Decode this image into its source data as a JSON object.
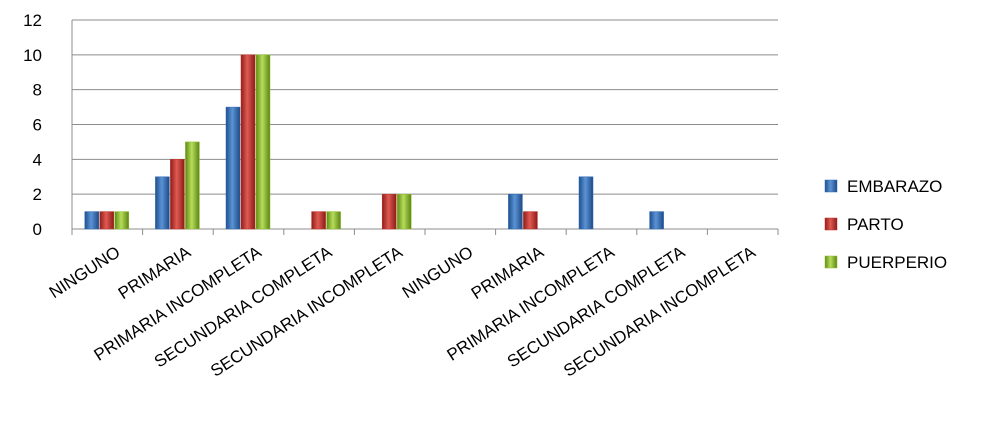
{
  "chart_data": {
    "type": "bar",
    "categories": [
      "NINGUNO",
      "PRIMARIA",
      "PRIMARIA INCOMPLETA",
      "SECUNDARIA COMPLETA",
      "SECUNDARIA INCOMPLETA",
      "NINGUNO",
      "PRIMARIA",
      "PRIMARIA INCOMPLETA",
      "SECUNDARIA COMPLETA",
      "SECUNDARIA INCOMPLETA"
    ],
    "series": [
      {
        "name": "EMBARAZO",
        "color": "#2f6db5",
        "values": [
          1,
          3,
          7,
          0,
          0,
          0,
          2,
          3,
          1,
          0
        ]
      },
      {
        "name": "PARTO",
        "color": "#c0312b",
        "values": [
          1,
          4,
          10,
          1,
          2,
          0,
          1,
          0,
          0,
          0
        ]
      },
      {
        "name": "PUERPERIO",
        "color": "#8fbf2a",
        "values": [
          1,
          5,
          10,
          1,
          2,
          0,
          0,
          0,
          0,
          0
        ]
      }
    ],
    "ylim": [
      0,
      12
    ],
    "yticks": [
      0,
      2,
      4,
      6,
      8,
      10,
      12
    ],
    "grid": true,
    "legend_position": "right"
  }
}
